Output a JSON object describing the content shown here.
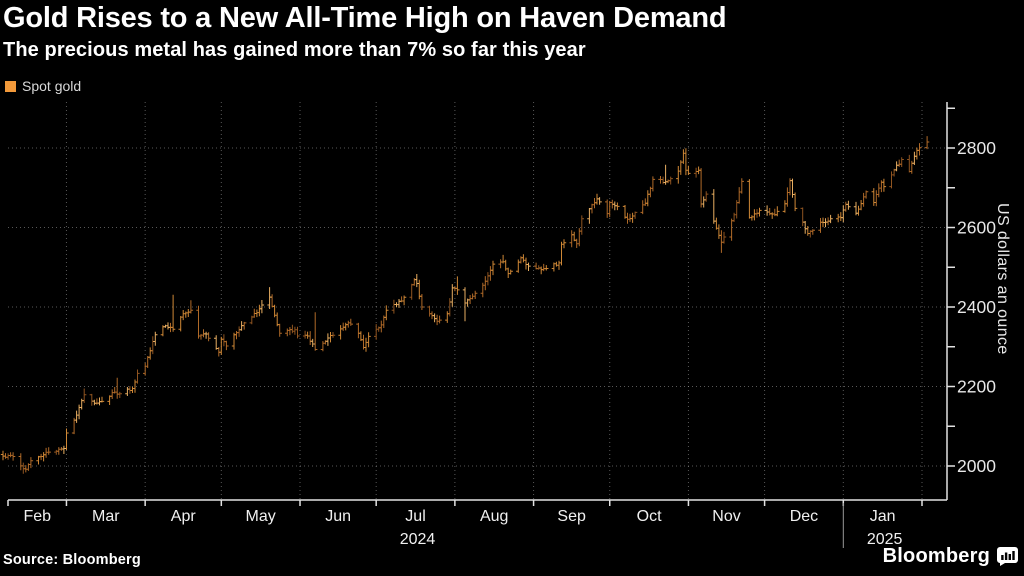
{
  "chart_data": {
    "type": "ohlc",
    "title": "Gold Rises to a New All-Time High on Haven Demand",
    "subtitle": "The precious metal has gained more than 7% so far this year",
    "legend": "Spot gold",
    "ylabel": "US dollars an ounce",
    "source": "Source: Bloomberg",
    "brand": "Bloomberg",
    "grid": true,
    "legend_position": "top-left",
    "x_range": {
      "start": "2024-02-05",
      "end": "2025-02-03"
    },
    "months": [
      "Feb",
      "Mar",
      "Apr",
      "May",
      "Jun",
      "Jul",
      "Aug",
      "Sep",
      "Oct",
      "Nov",
      "Dec",
      "Jan"
    ],
    "years": [
      {
        "label": "2024",
        "month_index": 5,
        "divider": false
      },
      {
        "label": "2025",
        "month_index": 11,
        "divider": true
      }
    ],
    "y_ticks": [
      2000,
      2200,
      2400,
      2600,
      2800
    ],
    "y_minor_tick_step": 100,
    "ylim": [
      1905,
      2915
    ],
    "series_color": "#f2993a",
    "bar_palette": [
      "#8f5420",
      "#b06a28",
      "#cf8836",
      "#e8ae62"
    ],
    "anchors": [
      [
        "2024-02-05",
        2025
      ],
      [
        "2024-02-09",
        2024
      ],
      [
        "2024-02-13",
        1993
      ],
      [
        "2024-02-14",
        1992,
        null,
        1984
      ],
      [
        "2024-02-16",
        2013
      ],
      [
        "2024-02-23",
        2035
      ],
      [
        "2024-02-29",
        2044
      ],
      [
        "2024-03-01",
        2083
      ],
      [
        "2024-03-05",
        2128
      ],
      [
        "2024-03-08",
        2179,
        2195
      ],
      [
        "2024-03-12",
        2158
      ],
      [
        "2024-03-14",
        2162
      ],
      [
        "2024-03-20",
        2186
      ],
      [
        "2024-03-21",
        2181,
        2222
      ],
      [
        "2024-03-27",
        2195
      ],
      [
        "2024-03-29",
        2233
      ],
      [
        "2024-04-01",
        2251
      ],
      [
        "2024-04-05",
        2330
      ],
      [
        "2024-04-09",
        2353
      ],
      [
        "2024-04-12",
        2344,
        2431
      ],
      [
        "2024-04-16",
        2383
      ],
      [
        "2024-04-19",
        2392,
        2417
      ],
      [
        "2024-04-22",
        2327
      ],
      [
        "2024-04-25",
        2332
      ],
      [
        "2024-04-30",
        2286
      ],
      [
        "2024-05-01",
        2319
      ],
      [
        "2024-05-03",
        2302
      ],
      [
        "2024-05-10",
        2360
      ],
      [
        "2024-05-15",
        2386
      ],
      [
        "2024-05-20",
        2425,
        2450
      ],
      [
        "2024-05-22",
        2379
      ],
      [
        "2024-05-24",
        2334
      ],
      [
        "2024-05-30",
        2343
      ],
      [
        "2024-05-31",
        2327
      ],
      [
        "2024-06-04",
        2327
      ],
      [
        "2024-06-07",
        2293,
        2387
      ],
      [
        "2024-06-12",
        2322
      ],
      [
        "2024-06-20",
        2360
      ],
      [
        "2024-06-24",
        2334
      ],
      [
        "2024-06-26",
        2298
      ],
      [
        "2024-06-28",
        2326
      ],
      [
        "2024-07-03",
        2355
      ],
      [
        "2024-07-05",
        2392
      ],
      [
        "2024-07-11",
        2415
      ],
      [
        "2024-07-16",
        2469
      ],
      [
        "2024-07-17",
        2459,
        2483
      ],
      [
        "2024-07-19",
        2400
      ],
      [
        "2024-07-25",
        2364
      ],
      [
        "2024-07-29",
        2383
      ],
      [
        "2024-07-31",
        2448
      ],
      [
        "2024-08-02",
        2443,
        2477
      ],
      [
        "2024-08-05",
        2410,
        null,
        2364
      ],
      [
        "2024-08-08",
        2427
      ],
      [
        "2024-08-13",
        2465
      ],
      [
        "2024-08-16",
        2508
      ],
      [
        "2024-08-20",
        2514,
        2531
      ],
      [
        "2024-08-22",
        2484
      ],
      [
        "2024-08-27",
        2524
      ],
      [
        "2024-08-30",
        2503
      ],
      [
        "2024-09-04",
        2494
      ],
      [
        "2024-09-11",
        2511
      ],
      [
        "2024-09-12",
        2558
      ],
      [
        "2024-09-16",
        2582
      ],
      [
        "2024-09-18",
        2559
      ],
      [
        "2024-09-20",
        2622
      ],
      [
        "2024-09-24",
        2657
      ],
      [
        "2024-09-26",
        2672,
        2685
      ],
      [
        "2024-09-30",
        2635
      ],
      [
        "2024-10-01",
        2663
      ],
      [
        "2024-10-04",
        2653
      ],
      [
        "2024-10-08",
        2621
      ],
      [
        "2024-10-10",
        2629
      ],
      [
        "2024-10-15",
        2661
      ],
      [
        "2024-10-18",
        2721
      ],
      [
        "2024-10-23",
        2715,
        2758
      ],
      [
        "2024-10-28",
        2742
      ],
      [
        "2024-10-30",
        2787,
        2790
      ],
      [
        "2024-10-31",
        2744
      ],
      [
        "2024-11-01",
        2736
      ],
      [
        "2024-11-05",
        2744
      ],
      [
        "2024-11-06",
        2659
      ],
      [
        "2024-11-08",
        2684
      ],
      [
        "2024-11-12",
        2598
      ],
      [
        "2024-11-14",
        2563,
        null,
        2536
      ],
      [
        "2024-11-19",
        2632
      ],
      [
        "2024-11-22",
        2716
      ],
      [
        "2024-11-25",
        2625
      ],
      [
        "2024-11-29",
        2643
      ],
      [
        "2024-12-05",
        2632
      ],
      [
        "2024-12-09",
        2660
      ],
      [
        "2024-12-11",
        2718
      ],
      [
        "2024-12-13",
        2648
      ],
      [
        "2024-12-18",
        2585
      ],
      [
        "2024-12-23",
        2613
      ],
      [
        "2024-12-31",
        2625
      ],
      [
        "2025-01-02",
        2658
      ],
      [
        "2025-01-06",
        2636
      ],
      [
        "2025-01-10",
        2690
      ],
      [
        "2025-01-13",
        2663
      ],
      [
        "2025-01-16",
        2714
      ],
      [
        "2025-01-17",
        2703
      ],
      [
        "2025-01-21",
        2745
      ],
      [
        "2025-01-24",
        2771
      ],
      [
        "2025-01-27",
        2741
      ],
      [
        "2025-01-30",
        2794
      ],
      [
        "2025-01-31",
        2801
      ],
      [
        "2025-02-03",
        2815,
        2830
      ]
    ]
  },
  "colors": {
    "background": "#000000",
    "text": "#ffffff",
    "muted_text": "#d9d9d9",
    "axis": "#e2e2e2",
    "grid": "#b0b0b0"
  }
}
